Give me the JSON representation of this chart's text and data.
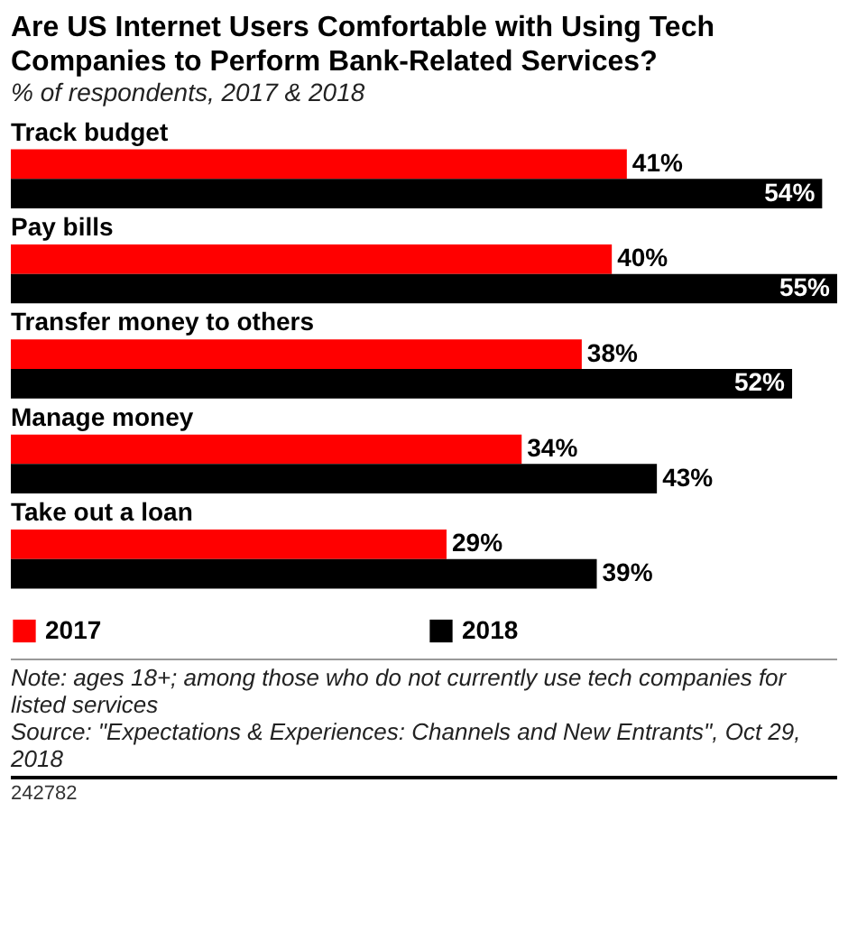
{
  "chart_data": {
    "type": "bar",
    "orientation": "horizontal",
    "title": "Are US Internet Users Comfortable with Using Tech Companies to Perform Bank-Related Services?",
    "subtitle": "% of respondents, 2017 & 2018",
    "categories": [
      "Track budget",
      "Pay bills",
      "Transfer money to others",
      "Manage money",
      "Take out a loan"
    ],
    "series": [
      {
        "name": "2017",
        "color": "#ff0000",
        "values": [
          41,
          40,
          38,
          34,
          29
        ],
        "value_labels": [
          "41%",
          "40%",
          "38%",
          "34%",
          "29%"
        ]
      },
      {
        "name": "2018",
        "color": "#000000",
        "values": [
          54,
          55,
          52,
          43,
          39
        ],
        "value_labels": [
          "54%",
          "55%",
          "52%",
          "43%",
          "39%"
        ]
      }
    ],
    "legend": "bottom",
    "annotations": [
      "Note: ages 18+; among those who do not currently use tech companies for listed services",
      "Source: \"Expectations & Experiences: Channels and New Entrants\", Oct 29, 2018",
      "242782"
    ]
  }
}
